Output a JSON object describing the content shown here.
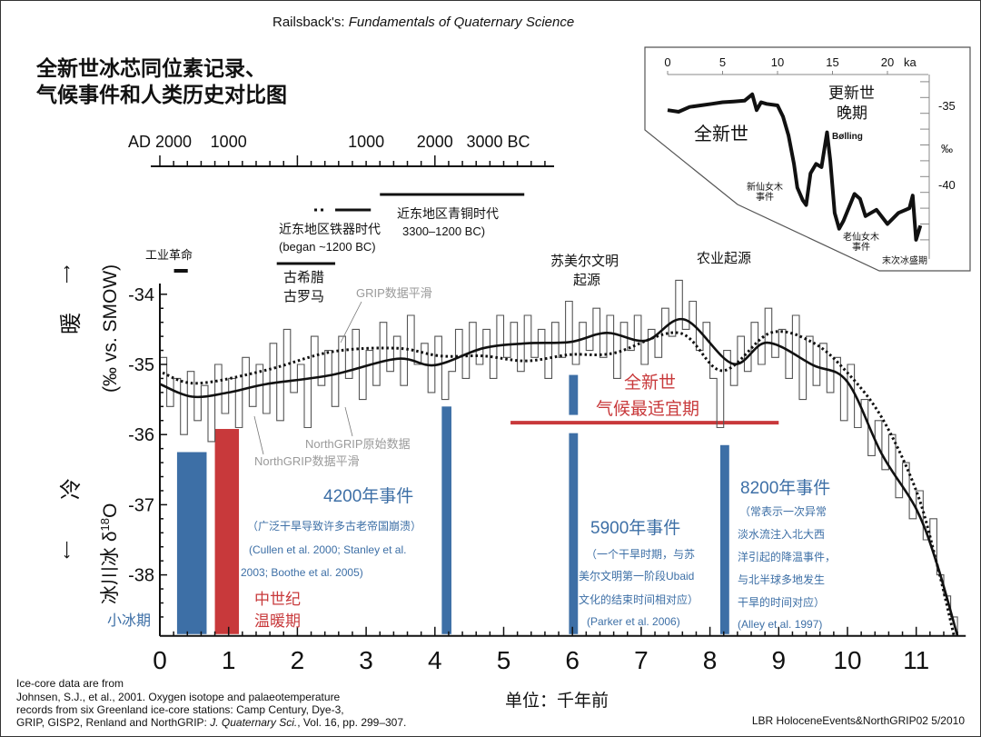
{
  "header": {
    "source_prefix": "Railsback's: ",
    "source_book": "Fundamentals of Quaternary Science",
    "title_line1": "全新世冰芯同位素记录、",
    "title_line2": "气候事件和人类历史对比图"
  },
  "calendar_axis": {
    "labels": [
      {
        "text": "AD 2000",
        "ka": 0
      },
      {
        "text": "1000",
        "ka": 1
      },
      {
        "text": "1000",
        "ka": 3
      },
      {
        "text": "2000",
        "ka": 4
      },
      {
        "text": "3000 BC",
        "ka": 5
      }
    ]
  },
  "y_axis_label": {
    "warm": "暖",
    "cold": "冷",
    "units": "(‰ vs. SMOW)",
    "quantity": "冰川冰 δ",
    "quantity_sup": "18",
    "quantity_end": "O"
  },
  "history_labels": {
    "industrial": "工业革命",
    "greece_rome_1": "古希腊",
    "greece_rome_2": "古罗马",
    "iron_age_1": "近东地区铁器时代",
    "iron_age_2": "(began ~1200 BC)",
    "bronze_age_1": "近东地区青铜时代",
    "bronze_age_2": "3300–1200 BC)",
    "sumer_1": "苏美尔文明",
    "sumer_2": "起源",
    "agriculture": "农业起源"
  },
  "series_labels": {
    "grip_smooth": "GRIP数据平滑",
    "ngrip_raw": "NorthGRIP原始数据",
    "ngrip_smooth": "NorthGRIP数据平滑"
  },
  "event_labels": {
    "lia": "小冰期",
    "mwp_1": "中世纪",
    "mwp_2": "温暖期",
    "e4200_title": "4200年事件",
    "e4200_l1": "（广泛干旱导致许多古老帝国崩溃）",
    "e4200_l2": "(Cullen et al. 2000; Stanley et al.",
    "e4200_l3": "2003; Boothe et al. 2005)",
    "htm_1": "全新世",
    "htm_2": "气候最适宜期",
    "e5900_title": "5900年事件",
    "e5900_l1": "（一个干旱时期，与苏",
    "e5900_l2": "美尔文明第一阶段Ubaid",
    "e5900_l3": "文化的结束时间相对应）",
    "e5900_l4": "(Parker et al. 2006)",
    "e8200_title": "8200年事件",
    "e8200_l1": "（常表示一次异常",
    "e8200_l2": "淡水流注入北大西",
    "e8200_l3": "洋引起的降温事件，",
    "e8200_l4": "与北半球多地发生",
    "e8200_l5": "干旱的时间对应）",
    "e8200_l6": "(Alley et al. 1997)"
  },
  "footer": {
    "xlabel": "单位：千年前",
    "credit_1": "Ice-core data are from",
    "credit_2": "Johnsen, S.J., et al., 2001. Oxygen isotope and palaeotemperature",
    "credit_3": "records from six Greenland ice-core stations: Camp Century, Dye-3,",
    "credit_4a": "GRIP, GISP2, Renland and NorthGRIP: ",
    "credit_4b": "J. Quaternary Sci.",
    "credit_4c": ", Vol. 16, pp. 299–307.",
    "file_id": "LBR HoloceneEvents&NorthGRIP02  5/2010"
  },
  "colors": {
    "blue": "#3d6fa6",
    "red": "#c8393b",
    "gray": "#9a9a9a",
    "black": "#111111"
  },
  "chart_data": [
    {
      "type": "line",
      "xlabel": "单位：千年前",
      "ylabel": "冰川冰 δ18O (‰ vs. SMOW)",
      "xlim": [
        0,
        11.7
      ],
      "ylim": [
        -38.87,
        -33.7
      ],
      "xticks": [
        0,
        1,
        2,
        3,
        4,
        5,
        6,
        7,
        8,
        9,
        10,
        11
      ],
      "yticks": [
        -34,
        -35,
        -36,
        -37,
        -38
      ],
      "series": [
        {
          "name": "NorthGRIP原始数据",
          "style": "step",
          "color": "#555555",
          "x_step": 0.1,
          "values": [
            -34.9,
            -35.6,
            -35.2,
            -36.0,
            -35.1,
            -35.8,
            -35.3,
            -36.1,
            -35.0,
            -35.7,
            -35.2,
            -35.9,
            -34.9,
            -35.6,
            -35.0,
            -35.7,
            -34.7,
            -35.8,
            -34.5,
            -35.4,
            -35.0,
            -35.9,
            -34.6,
            -35.3,
            -34.8,
            -35.6,
            -34.6,
            -35.2,
            -34.5,
            -35.5,
            -34.8,
            -35.3,
            -34.4,
            -35.1,
            -34.6,
            -35.3,
            -34.3,
            -35.0,
            -34.7,
            -35.4,
            -34.6,
            -35.5,
            -35.1,
            -34.5,
            -35.2,
            -34.4,
            -35.0,
            -34.5,
            -35.2,
            -34.3,
            -34.9,
            -34.4,
            -35.1,
            -34.3,
            -34.9,
            -34.5,
            -35.2,
            -34.4,
            -34.9,
            -34.1,
            -35.0,
            -34.4,
            -34.8,
            -34.2,
            -34.9,
            -34.3,
            -35.2,
            -34.4,
            -34.8,
            -34.3,
            -35.0,
            -34.5,
            -34.9,
            -34.2,
            -34.6,
            -33.8,
            -34.5,
            -34.1,
            -34.8,
            -34.4,
            -35.2,
            -35.9,
            -34.8,
            -35.3,
            -34.6,
            -35.1,
            -34.4,
            -35.0,
            -34.2,
            -34.9,
            -34.5,
            -35.2,
            -34.3,
            -35.5,
            -34.6,
            -35.3,
            -34.7,
            -35.4,
            -34.9,
            -35.8,
            -35.0,
            -35.9,
            -35.5,
            -36.3,
            -35.8,
            -36.5,
            -36.0,
            -36.9,
            -36.4,
            -37.2,
            -36.8,
            -37.5,
            -37.2,
            -38.0,
            -38.3,
            -38.6,
            -38.85
          ]
        },
        {
          "name": "NorthGRIP数据平滑",
          "style": "solid",
          "color": "#111111",
          "points": [
            [
              0,
              -35.28
            ],
            [
              0.47,
              -35.46
            ],
            [
              1.0,
              -35.4
            ],
            [
              1.55,
              -35.28
            ],
            [
              2.5,
              -35.15
            ],
            [
              3.45,
              -34.92
            ],
            [
              4.0,
              -35.01
            ],
            [
              4.7,
              -34.77
            ],
            [
              5.33,
              -34.7
            ],
            [
              5.97,
              -34.68
            ],
            [
              6.5,
              -34.55
            ],
            [
              7.07,
              -34.66
            ],
            [
              7.63,
              -34.36
            ],
            [
              8.33,
              -34.99
            ],
            [
              8.83,
              -34.69
            ],
            [
              9.5,
              -35.01
            ],
            [
              10.0,
              -35.25
            ],
            [
              10.5,
              -36.28
            ],
            [
              11.0,
              -37.06
            ],
            [
              11.3,
              -37.84
            ],
            [
              11.6,
              -38.87
            ]
          ]
        },
        {
          "name": "GRIP数据平滑",
          "style": "dotted",
          "color": "#111111",
          "points": [
            [
              0.04,
              -35.12
            ],
            [
              0.54,
              -35.27
            ],
            [
              1.55,
              -35.08
            ],
            [
              2.5,
              -34.82
            ],
            [
              3.45,
              -34.77
            ],
            [
              4.08,
              -34.88
            ],
            [
              4.7,
              -34.88
            ],
            [
              5.33,
              -34.95
            ],
            [
              5.97,
              -34.86
            ],
            [
              6.6,
              -34.84
            ],
            [
              7.55,
              -34.55
            ],
            [
              8.18,
              -35.09
            ],
            [
              8.88,
              -34.55
            ],
            [
              9.5,
              -34.69
            ],
            [
              10.0,
              -35.12
            ],
            [
              10.5,
              -35.76
            ],
            [
              11.0,
              -36.8
            ],
            [
              11.3,
              -37.84
            ],
            [
              11.55,
              -38.87
            ]
          ]
        }
      ],
      "event_bars": [
        {
          "label": "小冰期",
          "x": [
            0.25,
            0.68
          ],
          "top": -36.25,
          "color": "#3d6fa6"
        },
        {
          "label": "中世纪温暖期",
          "x": [
            0.8,
            1.15
          ],
          "top": -35.92,
          "color": "#c8393b"
        },
        {
          "label": "4200年事件",
          "x": [
            4.1,
            4.24
          ],
          "top": -35.6,
          "color": "#3d6fa6"
        },
        {
          "label": "5900年事件",
          "x": [
            5.95,
            6.08
          ],
          "top": -35.15,
          "color": "#3d6fa6",
          "gap": [
            -35.72,
            -35.98
          ]
        },
        {
          "label": "8200年事件",
          "x": [
            8.15,
            8.28
          ],
          "top": -36.15,
          "color": "#3d6fa6"
        }
      ],
      "htm_line": {
        "label": "全新世气候最适宜期",
        "x": [
          5.1,
          9.0
        ],
        "y": -35.83,
        "color": "#c8393b"
      },
      "history_bars": [
        {
          "label": "工业革命",
          "ka": [
            0.1,
            0.3
          ]
        },
        {
          "label": "古希腊古罗马",
          "ka": [
            1.7,
            2.55
          ]
        },
        {
          "label": "近东地区铁器时代",
          "ka": [
            2.55,
            3.2
          ],
          "dashed_start": true
        },
        {
          "label": "近东地区青铜时代",
          "ka": [
            3.2,
            5.3
          ]
        }
      ]
    },
    {
      "type": "line",
      "xlabel": "ka",
      "ylabel": "‰",
      "xlim": [
        0,
        24
      ],
      "ylim": [
        -43.8,
        -33.6
      ],
      "xticks": [
        0,
        5,
        10,
        15,
        20
      ],
      "yticks": [
        -35,
        -40
      ],
      "annotations": {
        "holocene": "全新世",
        "late_pleistocene_1": "更新世",
        "late_pleistocene_2": "晚期",
        "bolling": "Bølling",
        "yd_1": "新仙女木",
        "yd_2": "事件",
        "od_1": "老仙女木",
        "od_2": "事件",
        "lgm": "末次冰盛期",
        "ka_unit": "ka",
        "permil": "‰"
      },
      "series": [
        {
          "points": [
            [
              0,
              -35.3
            ],
            [
              1,
              -35.4
            ],
            [
              2,
              -35.1
            ],
            [
              3,
              -35.0
            ],
            [
              4,
              -34.9
            ],
            [
              5,
              -34.8
            ],
            [
              6,
              -34.75
            ],
            [
              7,
              -34.7
            ],
            [
              7.7,
              -34.3
            ],
            [
              8.1,
              -35.3
            ],
            [
              8.5,
              -34.8
            ],
            [
              9,
              -34.9
            ],
            [
              10,
              -35.0
            ],
            [
              10.5,
              -35.7
            ],
            [
              11,
              -36.9
            ],
            [
              11.5,
              -38.7
            ],
            [
              11.8,
              -40.2
            ],
            [
              12.3,
              -41.0
            ],
            [
              12.6,
              -41.3
            ],
            [
              13,
              -39.3
            ],
            [
              13.5,
              -38.7
            ],
            [
              14,
              -38.9
            ],
            [
              14.5,
              -36.7
            ],
            [
              14.8,
              -38.5
            ],
            [
              15.2,
              -41.8
            ],
            [
              15.6,
              -42.8
            ],
            [
              16,
              -42.3
            ],
            [
              17,
              -40.6
            ],
            [
              17.5,
              -40.9
            ],
            [
              18,
              -42.0
            ],
            [
              19,
              -41.6
            ],
            [
              20,
              -42.5
            ],
            [
              21,
              -41.8
            ],
            [
              22,
              -41.5
            ],
            [
              22.3,
              -40.7
            ],
            [
              22.6,
              -43.5
            ],
            [
              23,
              -42.6
            ]
          ]
        }
      ]
    }
  ]
}
